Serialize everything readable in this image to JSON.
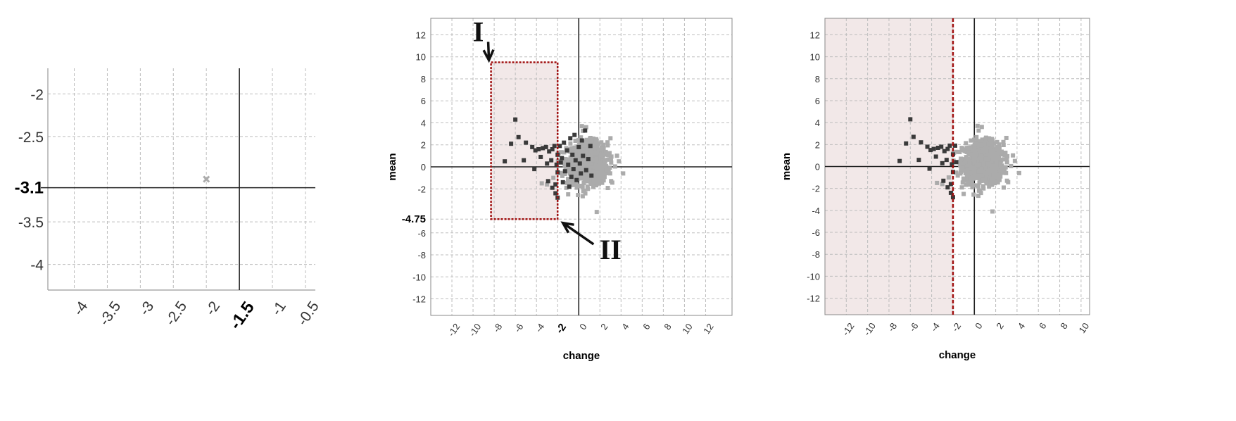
{
  "colors": {
    "light_point": "#ababab",
    "dark_point": "#3a3a3a",
    "region_fill": "#f2e8e8",
    "region_border": "#a01010"
  },
  "chart_data": [
    {
      "id": "zoom",
      "type": "scatter",
      "xlim": [
        -4.4,
        -0.35
      ],
      "ylim": [
        -4.3,
        -1.7
      ],
      "x_ticks": [
        "-4",
        "-3.5",
        "-3",
        "-2.5",
        "-2",
        "-1.5",
        "-1",
        "-0.5"
      ],
      "y_ticks": [
        "-2",
        "-2.5",
        "-3.1",
        "-3.5",
        "-4"
      ],
      "bold_x_tick": "-1.5",
      "bold_y_tick": "-3.1",
      "xlabel": "",
      "ylabel": "",
      "grid": true,
      "crosshair": {
        "x": -1.5,
        "y": -3.1
      },
      "points": [
        {
          "x": -2,
          "y": -3.0,
          "shade": "light"
        }
      ]
    },
    {
      "id": "box-selection",
      "type": "scatter",
      "xlim": [
        -14,
        14.5
      ],
      "ylim": [
        -13.5,
        13.5
      ],
      "x_ticks": [
        "-12",
        "-10",
        "-8",
        "-6",
        "-4",
        "-2",
        "0",
        "2",
        "4",
        "6",
        "8",
        "10",
        "12"
      ],
      "y_ticks": [
        "12",
        "10",
        "8",
        "6",
        "4",
        "2",
        "0",
        "-2",
        "-4.75",
        "-6",
        "-8",
        "-10",
        "-12"
      ],
      "bold_x_tick": "-2",
      "bold_y_tick": "-4.75",
      "xlabel": "change",
      "ylabel": "mean",
      "grid": true,
      "region": {
        "x0": -8.3,
        "x1": -2,
        "y0": -4.75,
        "y1": 9.5
      },
      "annotations": [
        {
          "text": "I",
          "x": -9.5,
          "y": 12.0,
          "arrow_to": [
            -8.5,
            9.7
          ]
        },
        {
          "text": "II",
          "x": 3.0,
          "y": -7.8,
          "arrow_to": [
            -1.5,
            -5.1
          ]
        }
      ]
    },
    {
      "id": "threshold-selection",
      "type": "scatter",
      "xlim": [
        -14,
        10.8
      ],
      "ylim": [
        -13.5,
        13.5
      ],
      "x_ticks": [
        "-12",
        "-10",
        "-8",
        "-6",
        "-4",
        "-2",
        "0",
        "2",
        "4",
        "6",
        "8",
        "10"
      ],
      "y_ticks": [
        "12",
        "10",
        "8",
        "6",
        "4",
        "2",
        "0",
        "-2",
        "-4",
        "-6",
        "-8",
        "-10",
        "-12"
      ],
      "xlabel": "change",
      "ylabel": "mean",
      "grid": true,
      "threshold_x": -2,
      "region": {
        "x0": -14,
        "x1": -2
      }
    }
  ],
  "scatter_cloud": {
    "light_center": [
      0.8,
      0.3
    ],
    "light_spread": [
      0.95,
      0.95
    ],
    "light_count": 900,
    "outliers_light": [
      [
        -3.5,
        -1.5
      ],
      [
        -3.0,
        -1.6
      ],
      [
        -2.4,
        -1.0
      ],
      [
        0.3,
        3.7
      ],
      [
        0.7,
        3.6
      ],
      [
        1.7,
        -4.1
      ],
      [
        3.0,
        2.6
      ],
      [
        3.8,
        0.5
      ],
      [
        4.2,
        -0.6
      ],
      [
        -1.0,
        -2.5
      ]
    ],
    "dark_points": [
      [
        -6.0,
        4.3
      ],
      [
        -5.7,
        2.7
      ],
      [
        -6.4,
        2.1
      ],
      [
        -5.0,
        2.2
      ],
      [
        -7.0,
        0.5
      ],
      [
        -5.2,
        0.6
      ],
      [
        -4.4,
        1.8
      ],
      [
        -4.1,
        1.5
      ],
      [
        -3.8,
        1.6
      ],
      [
        -3.4,
        1.7
      ],
      [
        -3.1,
        1.8
      ],
      [
        -2.8,
        1.4
      ],
      [
        -2.5,
        1.6
      ],
      [
        -2.3,
        1.9
      ],
      [
        -3.6,
        0.9
      ],
      [
        -3.0,
        0.3
      ],
      [
        -2.6,
        0.6
      ],
      [
        -4.2,
        -0.2
      ],
      [
        -2.9,
        -1.3
      ],
      [
        -2.5,
        -1.9
      ],
      [
        -2.2,
        -1.6
      ],
      [
        -2.1,
        0.2
      ],
      [
        -2.0,
        1.1
      ],
      [
        -2.0,
        -0.5
      ],
      [
        -2.2,
        -2.4
      ],
      [
        -2.0,
        -2.8
      ],
      [
        -1.8,
        1.9
      ],
      [
        -1.6,
        0.8
      ],
      [
        -1.4,
        2.2
      ],
      [
        -1.3,
        -0.4
      ],
      [
        -1.1,
        1.5
      ],
      [
        -1.0,
        0.2
      ],
      [
        -0.8,
        2.6
      ],
      [
        -0.7,
        -0.9
      ],
      [
        -0.6,
        1.1
      ],
      [
        -0.5,
        -0.2
      ],
      [
        -0.4,
        2.9
      ],
      [
        -0.3,
        0.6
      ],
      [
        -0.2,
        -1.2
      ],
      [
        0.0,
        1.8
      ],
      [
        0.1,
        0.3
      ],
      [
        0.2,
        -0.6
      ],
      [
        0.3,
        2.4
      ],
      [
        0.4,
        1.0
      ],
      [
        0.6,
        3.3
      ],
      [
        0.7,
        -0.3
      ],
      [
        0.9,
        0.7
      ],
      [
        1.1,
        1.9
      ],
      [
        1.2,
        -0.8
      ],
      [
        -1.5,
        -1.4
      ],
      [
        -0.9,
        -1.8
      ],
      [
        -1.7,
        0.4
      ]
    ]
  }
}
